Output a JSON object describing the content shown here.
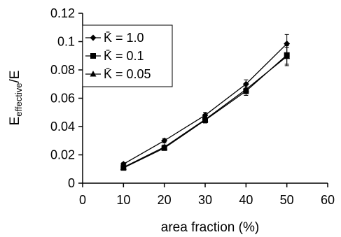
{
  "chart_data": {
    "type": "line",
    "x": [
      10,
      20,
      30,
      40,
      50
    ],
    "series": [
      {
        "name": "K̄ = 1.0",
        "marker": "diamond",
        "values": [
          0.0135,
          0.03,
          0.048,
          0.07,
          0.0985
        ],
        "errors": [
          0.001,
          0.0015,
          0.002,
          0.003,
          0.0065
        ]
      },
      {
        "name": "K̄ = 0.1",
        "marker": "square",
        "values": [
          0.0108,
          0.0248,
          0.0445,
          0.065,
          0.0905
        ],
        "errors": [
          0.001,
          0.0015,
          0.002,
          0.003,
          0.0065
        ]
      },
      {
        "name": "K̄ = 0.05",
        "marker": "triangle",
        "values": [
          0.0112,
          0.0255,
          0.045,
          0.0662,
          0.0895
        ],
        "errors": [
          0.001,
          0.0015,
          0.002,
          0.003,
          0.0065
        ]
      }
    ],
    "xlabel": "area fraction (%)",
    "ylabel": {
      "main": "E",
      "sub": "effective",
      "suffix": "/E"
    },
    "xlim": [
      0,
      60
    ],
    "ylim": [
      0,
      0.12
    ],
    "xticks": [
      "0",
      "10",
      "20",
      "30",
      "40",
      "50",
      "60"
    ],
    "yticks": [
      "0",
      "0.02",
      "0.04",
      "0.06",
      "0.08",
      "0.1",
      "0.12"
    ],
    "grid": false,
    "legend_position": "top-left",
    "line_color": "#000000"
  }
}
